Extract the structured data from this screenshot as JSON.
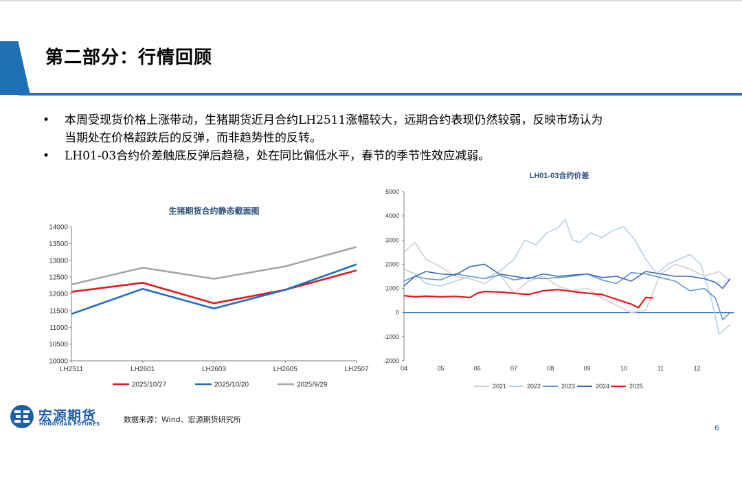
{
  "page": {
    "title": "第二部分：行情回顾",
    "bullets": [
      "本周受现货价格上涨带动，生猪期货近月合约LH2511涨幅较大，远期合约表现仍然较弱，反映市场认为",
      "当期处在价格超跌后的反弹，而非趋势性的反转。",
      "LH01-03合约价差触底反弹后趋稳，处在同比偏低水平，春节的季节性效应减弱。"
    ],
    "source": "数据来源：Wind、宏源期货研究所",
    "page_number": "6",
    "logo": {
      "cn": "宏源期货",
      "en": "HONGYUAN FUTURES"
    },
    "colors": {
      "accent": "#1f6fb5"
    }
  },
  "chart_data": [
    {
      "type": "line",
      "title": "生猪期货合约静态截面图",
      "categories": [
        "LH2511",
        "LH2601",
        "LH2603",
        "LH2605",
        "LH2507"
      ],
      "ylim": [
        10000,
        14000
      ],
      "yticks": [
        10000,
        10500,
        11000,
        11500,
        12000,
        12500,
        13000,
        13500,
        14000
      ],
      "grid": false,
      "legend_position": "bottom",
      "series": [
        {
          "name": "2025/10/27",
          "color": "#e0191f",
          "values": [
            12060,
            12330,
            11720,
            12120,
            12700
          ]
        },
        {
          "name": "2025/10/20",
          "color": "#1f6fc1",
          "values": [
            11400,
            12150,
            11560,
            12120,
            12880
          ]
        },
        {
          "name": "2025/9/29",
          "color": "#a6a6a6",
          "values": [
            12280,
            12780,
            12450,
            12820,
            13400
          ]
        }
      ]
    },
    {
      "type": "line",
      "title": "LH01-03合约价差",
      "x_ticks": [
        "04",
        "05",
        "06",
        "07",
        "08",
        "09",
        "10",
        "11",
        "12"
      ],
      "ylim": [
        -2000,
        5000
      ],
      "yticks": [
        -2000,
        -1000,
        0,
        1000,
        2000,
        3000,
        4000,
        5000
      ],
      "grid": false,
      "legend_position": "bottom",
      "series": [
        {
          "name": "2021",
          "color": "#d0d0d0",
          "x": [
            4.0,
            4.3,
            4.6,
            5.0,
            5.4,
            5.8,
            6.2,
            6.6,
            7.0,
            7.4,
            7.8,
            8.2,
            8.6,
            9.0,
            9.4,
            9.8,
            10.2,
            10.6,
            11.0,
            11.4,
            11.8,
            12.2,
            12.6,
            12.9
          ],
          "y": [
            2500,
            2900,
            2200,
            1900,
            1500,
            1400,
            1200,
            1600,
            800,
            1300,
            1500,
            1100,
            900,
            1000,
            600,
            300,
            0,
            100,
            1600,
            2000,
            1800,
            1500,
            1700,
            1300
          ]
        },
        {
          "name": "2022",
          "color": "#b7cfe6",
          "x": [
            4.0,
            4.3,
            4.6,
            5.0,
            5.4,
            5.8,
            6.2,
            6.6,
            7.0,
            7.3,
            7.6,
            7.9,
            8.2,
            8.4,
            8.6,
            8.8,
            9.1,
            9.4,
            9.7,
            10.0,
            10.3,
            10.6,
            10.9,
            11.2,
            11.5,
            11.8,
            12.1,
            12.4,
            12.6,
            12.9
          ],
          "y": [
            1800,
            1600,
            1200,
            1100,
            1300,
            1500,
            1400,
            1700,
            2200,
            3000,
            2800,
            3300,
            3500,
            3850,
            3000,
            2900,
            3300,
            3100,
            3400,
            3550,
            3000,
            2200,
            1600,
            2000,
            2200,
            2400,
            2000,
            500,
            -900,
            -500
          ]
        },
        {
          "name": "2023",
          "color": "#5f98cf",
          "x": [
            4.0,
            4.3,
            4.6,
            5.0,
            5.4,
            5.8,
            6.2,
            6.6,
            7.0,
            7.4,
            7.8,
            8.2,
            8.6,
            9.0,
            9.4,
            9.8,
            10.2,
            10.6,
            11.0,
            11.4,
            11.8,
            12.2,
            12.5,
            12.7,
            12.9
          ],
          "y": [
            1300,
            1500,
            1400,
            1350,
            1600,
            1500,
            1400,
            1550,
            1350,
            1450,
            1400,
            1450,
            1500,
            1600,
            1350,
            1200,
            1650,
            1600,
            1450,
            1300,
            900,
            1000,
            600,
            -300,
            0
          ]
        },
        {
          "name": "2024",
          "color": "#3a68b8",
          "x": [
            4.0,
            4.3,
            4.6,
            5.0,
            5.4,
            5.8,
            6.2,
            6.6,
            7.0,
            7.4,
            7.8,
            8.2,
            8.6,
            9.0,
            9.4,
            9.8,
            10.2,
            10.6,
            11.0,
            11.4,
            11.8,
            12.2,
            12.5,
            12.7,
            12.9
          ],
          "y": [
            1100,
            1500,
            1700,
            1600,
            1550,
            1900,
            2000,
            1600,
            1500,
            1400,
            1600,
            1500,
            1550,
            1600,
            1450,
            1500,
            1300,
            1700,
            1600,
            1500,
            1500,
            1400,
            1250,
            1000,
            1400
          ]
        },
        {
          "name": "2025",
          "color": "#e8161c",
          "x": [
            4.0,
            4.3,
            4.6,
            5.0,
            5.4,
            5.8,
            6.0,
            6.2,
            6.6,
            7.0,
            7.4,
            7.8,
            8.2,
            8.6,
            9.0,
            9.4,
            9.8,
            10.2,
            10.4,
            10.6,
            10.8
          ],
          "y": [
            700,
            650,
            680,
            650,
            670,
            620,
            800,
            870,
            850,
            800,
            750,
            900,
            950,
            870,
            800,
            750,
            550,
            350,
            200,
            620,
            600
          ]
        }
      ]
    }
  ]
}
